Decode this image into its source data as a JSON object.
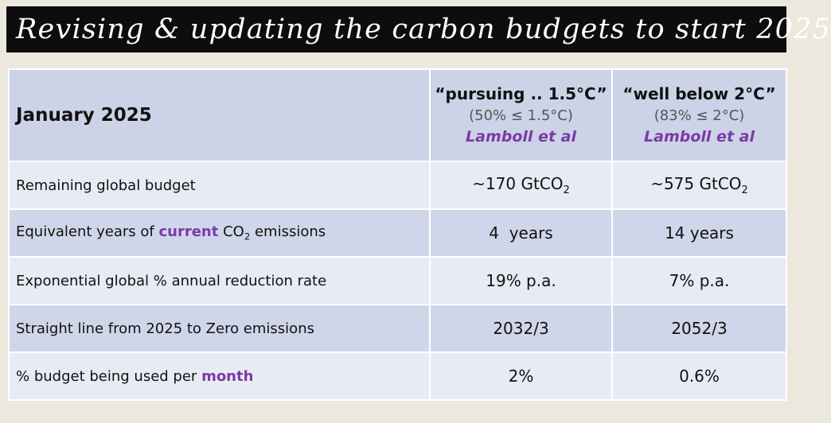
{
  "title": "Revising & updating the carbon budgets to start 2025",
  "header": {
    "label": "January 2025",
    "col_a": {
      "title": "“pursuing .. 1.5°C”",
      "sub": "(50% ≤ 1.5°C)",
      "ref": "Lamboll et al"
    },
    "col_b": {
      "title": "“well below 2°C”",
      "sub": "(83% ≤ 2°C)",
      "ref": "Lamboll et al"
    }
  },
  "rows": [
    {
      "label": "Remaining global budget",
      "a_prefix": "~170 GtCO",
      "a_sub": "2",
      "b_prefix": "~575 GtCO",
      "b_sub": "2"
    },
    {
      "label_pre": "Equivalent years of ",
      "label_emph": "current",
      "label_mid": " CO",
      "label_sub": "2",
      "label_post": " emissions",
      "a": "4  years",
      "b": "14 years"
    },
    {
      "label": "Exponential global % annual reduction rate",
      "a": "19% p.a.",
      "b": "7% p.a."
    },
    {
      "label": "Straight line from 2025 to Zero emissions",
      "a": "2032/3",
      "b": "2052/3"
    },
    {
      "label_pre": "% budget being used per ",
      "label_emph": "month",
      "a": "2%",
      "b": "0.6%"
    }
  ],
  "colors": {
    "accent_purple": "#7a3aa6",
    "title_bg": "#0d0d0d",
    "header_bg": "#ccd3e7",
    "row_light": "#e8ebf4",
    "row_dark": "#d0d6e9"
  }
}
